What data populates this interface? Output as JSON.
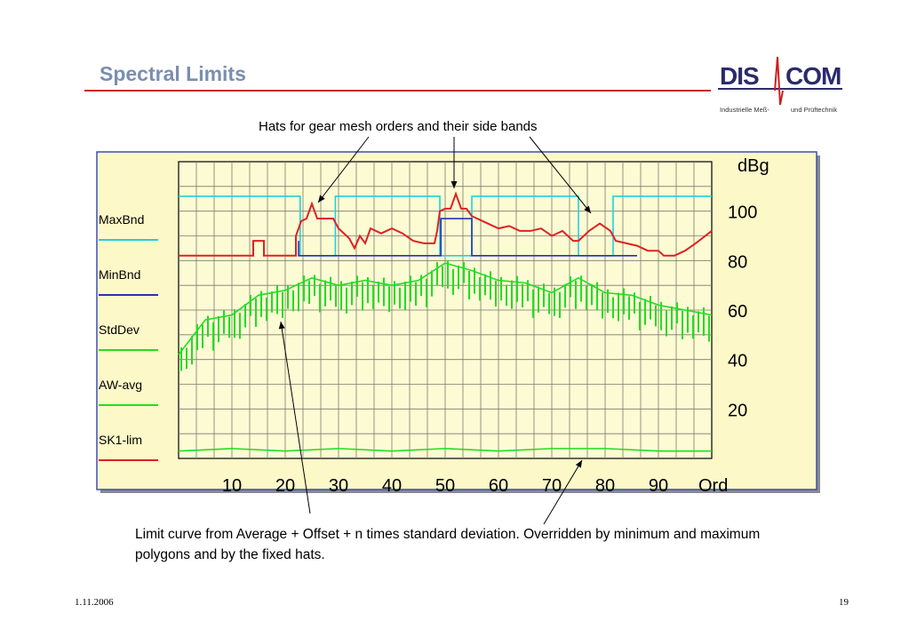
{
  "slide": {
    "title": "Spectral Limits",
    "date": "1.11.2006",
    "page": "19"
  },
  "logo": {
    "left": "DIS",
    "right": "COM",
    "sub_left": "Industrielle Meß-",
    "sub_right": "und Prüftechnik",
    "colors": {
      "text": "#2b2b6a",
      "pulse": "#cc2020"
    }
  },
  "annotations": {
    "top": "Hats for gear mesh orders and their side bands",
    "bottom": "Limit curve from Average + Offset + n times standard deviation. Overridden by minimum and maximum polygons and by the fixed hats."
  },
  "chart_data": {
    "type": "line",
    "ylabel": "dBg",
    "xlabel": "Ord",
    "xlim": [
      0,
      100
    ],
    "ylim": [
      0,
      120
    ],
    "xticks": [
      10,
      20,
      30,
      40,
      50,
      60,
      70,
      80,
      90
    ],
    "yticks": [
      20,
      40,
      60,
      80,
      100
    ],
    "grid": true,
    "legend_position": "left",
    "colors": {
      "plot_bg": "#fdfbd4",
      "frame_bg": "#fdf8c8",
      "frame_border": "#3b4fb8",
      "grid": "#7a7a6a"
    },
    "series": [
      {
        "name": "MaxBnd",
        "color": "#22d0dc",
        "x": [
          0,
          22.8,
          22.8,
          29.4,
          29.4,
          49,
          49,
          55,
          55,
          75,
          75,
          81.5,
          81.5,
          100
        ],
        "y": [
          106,
          106,
          82,
          82,
          106,
          106,
          82,
          82,
          106,
          106,
          82,
          82,
          106,
          106
        ]
      },
      {
        "name": "MinBnd",
        "color": "#2233bb",
        "x": [
          0,
          0,
          0,
          22.5,
          22.5,
          29.4,
          29.4,
          49.2,
          49.2,
          55,
          55,
          75.2,
          75.2,
          86,
          86
        ],
        "y": [
          null,
          null,
          null,
          88,
          82,
          82,
          82,
          82,
          97,
          97,
          82,
          82,
          82,
          82,
          82
        ]
      },
      {
        "name": "StdDev",
        "color": "#22dd22",
        "x": [
          0,
          5,
          10,
          15,
          20,
          25,
          30,
          35,
          40,
          45,
          50,
          55,
          60,
          65,
          70,
          75,
          80,
          85,
          90,
          95,
          100
        ],
        "y": [
          42,
          56,
          58,
          66,
          68,
          73,
          70,
          72,
          70,
          72,
          79,
          76,
          72,
          71,
          67,
          73,
          67,
          66,
          62,
          60,
          58
        ]
      },
      {
        "name": "AW-avg",
        "color": "#22dd22",
        "x": [
          0,
          10,
          20,
          30,
          40,
          50,
          60,
          70,
          80,
          90,
          100
        ],
        "y": [
          3,
          4,
          3,
          4,
          3,
          4,
          3,
          4,
          4,
          3,
          3
        ]
      },
      {
        "name": "SK1-lim",
        "color": "#dd2222",
        "x": [
          0,
          14,
          14,
          16,
          16,
          22,
          22,
          23,
          24,
          25,
          26,
          29,
          30,
          32,
          33,
          34,
          35,
          36,
          38,
          40,
          42,
          44,
          46,
          48,
          48.5,
          49,
          50,
          51,
          52,
          53,
          54,
          55,
          56,
          58,
          60,
          62,
          64,
          66,
          68,
          70,
          72,
          74,
          75,
          77,
          79,
          81,
          82,
          84,
          86,
          88,
          90,
          91,
          93,
          95,
          97,
          100
        ],
        "y": [
          82,
          82,
          88,
          88,
          82,
          82,
          90,
          96,
          97,
          103,
          97,
          97,
          93,
          89,
          85,
          90,
          87,
          93,
          91,
          93,
          91,
          88,
          87,
          87,
          92,
          100,
          101,
          101,
          107,
          101,
          101,
          98,
          97,
          95,
          93,
          94,
          92,
          92,
          93,
          90,
          92,
          88,
          88,
          92,
          95,
          92,
          88,
          87,
          86,
          84,
          84,
          82,
          82,
          84,
          87,
          92
        ]
      }
    ]
  }
}
